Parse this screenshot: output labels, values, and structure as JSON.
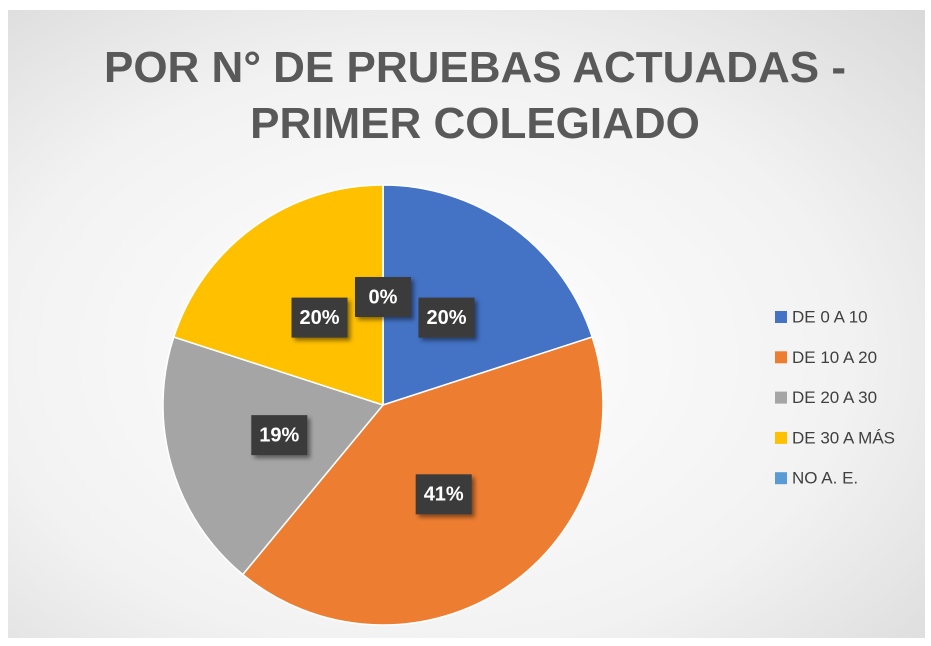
{
  "chart_data": {
    "type": "pie",
    "title": "POR N° DE PRUEBAS ACTUADAS - PRIMER COLEGIADO",
    "categories": [
      "DE 0 A 10",
      "DE 10 A 20",
      "DE 20 A 30",
      "DE 30 A MÁS",
      "NO A. E."
    ],
    "values": [
      20,
      41,
      19,
      20,
      0
    ],
    "value_labels": [
      "20%",
      "41%",
      "19%",
      "20%",
      "0%"
    ],
    "colors": [
      "#4472c4",
      "#ed7d31",
      "#a5a5a5",
      "#ffc000",
      "#5b9bd5"
    ],
    "legend": "right"
  }
}
